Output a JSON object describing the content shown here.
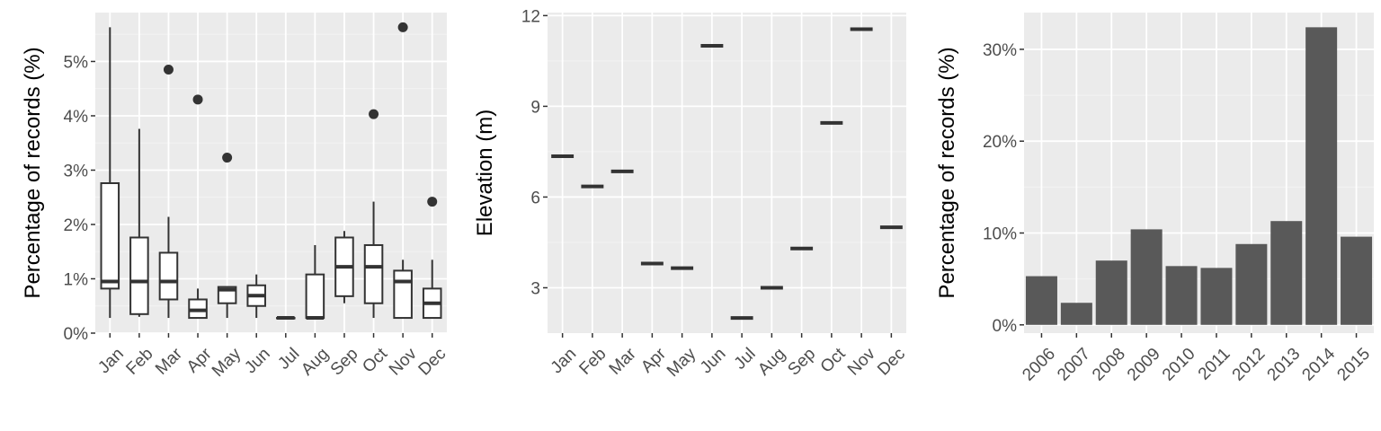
{
  "colors": {
    "panel_bg": "#ebebeb",
    "grid_major": "#ffffff",
    "grid_minor": "#f4f4f4",
    "ink": "#333333",
    "bar_fill": "#595959",
    "tick_text": "#4d4d4d"
  },
  "chart_data": [
    {
      "type": "boxplot",
      "title": "",
      "xlabel": "",
      "ylabel": "Percentage of records (%)",
      "ylim": [
        0,
        5.9
      ],
      "y_ticks": [
        0,
        1,
        2,
        3,
        4,
        5
      ],
      "y_tick_labels": [
        "0%",
        "1%",
        "2%",
        "3%",
        "4%",
        "5%"
      ],
      "grid": true,
      "categories": [
        "Jan",
        "Feb",
        "Mar",
        "Apr",
        "May",
        "Jun",
        "Jul",
        "Aug",
        "Sep",
        "Oct",
        "Nov",
        "Dec"
      ],
      "boxes": [
        {
          "min": 0.28,
          "q1": 0.82,
          "median": 0.95,
          "q3": 2.76,
          "max": 5.63,
          "outliers": []
        },
        {
          "min": 0.3,
          "q1": 0.35,
          "median": 0.95,
          "q3": 1.76,
          "max": 3.76,
          "outliers": []
        },
        {
          "min": 0.28,
          "q1": 0.62,
          "median": 0.95,
          "q3": 1.48,
          "max": 2.14,
          "outliers": [
            4.85
          ]
        },
        {
          "min": 0.28,
          "q1": 0.28,
          "median": 0.42,
          "q3": 0.62,
          "max": 0.82,
          "outliers": [
            4.3
          ]
        },
        {
          "min": 0.28,
          "q1": 0.55,
          "median": 0.8,
          "q3": 0.85,
          "max": 0.85,
          "outliers": [
            3.23
          ]
        },
        {
          "min": 0.28,
          "q1": 0.5,
          "median": 0.69,
          "q3": 0.88,
          "max": 1.08,
          "outliers": []
        },
        {
          "min": 0.28,
          "q1": 0.28,
          "median": 0.28,
          "q3": 0.28,
          "max": 0.28,
          "outliers": []
        },
        {
          "min": 0.28,
          "q1": 0.28,
          "median": 0.28,
          "q3": 1.08,
          "max": 1.62,
          "outliers": []
        },
        {
          "min": 0.55,
          "q1": 0.68,
          "median": 1.22,
          "q3": 1.76,
          "max": 1.88,
          "outliers": []
        },
        {
          "min": 0.28,
          "q1": 0.55,
          "median": 1.22,
          "q3": 1.62,
          "max": 2.42,
          "outliers": [
            4.03
          ]
        },
        {
          "min": 0.28,
          "q1": 0.28,
          "median": 0.95,
          "q3": 1.15,
          "max": 1.35,
          "outliers": [
            5.63
          ]
        },
        {
          "min": 0.28,
          "q1": 0.28,
          "median": 0.55,
          "q3": 0.82,
          "max": 1.35,
          "outliers": [
            2.42
          ]
        }
      ]
    },
    {
      "type": "crossbar",
      "title": "",
      "xlabel": "",
      "ylabel": "Elevation (m)",
      "ylim": [
        1.5,
        12.1
      ],
      "y_ticks": [
        3,
        6,
        9,
        12
      ],
      "y_tick_labels": [
        "3",
        "6",
        "9",
        "12"
      ],
      "grid": true,
      "categories": [
        "Jan",
        "Feb",
        "Mar",
        "Apr",
        "May",
        "Jun",
        "Jul",
        "Aug",
        "Sep",
        "Oct",
        "Nov",
        "Dec"
      ],
      "values": [
        7.35,
        6.35,
        6.85,
        3.8,
        3.65,
        11.0,
        2.0,
        3.0,
        4.3,
        8.45,
        11.55,
        5.0
      ]
    },
    {
      "type": "bar",
      "title": "",
      "xlabel": "",
      "ylabel": "Percentage of records (%)",
      "ylim": [
        -0.9,
        34.0
      ],
      "y_ticks": [
        0,
        10,
        20,
        30
      ],
      "y_tick_labels": [
        "0%",
        "10%",
        "20%",
        "30%"
      ],
      "grid": true,
      "categories": [
        "2006",
        "2007",
        "2008",
        "2009",
        "2010",
        "2011",
        "2012",
        "2013",
        "2014",
        "2015"
      ],
      "values": [
        5.3,
        2.4,
        7.0,
        10.4,
        6.4,
        6.2,
        8.8,
        11.3,
        32.4,
        9.6
      ]
    }
  ]
}
